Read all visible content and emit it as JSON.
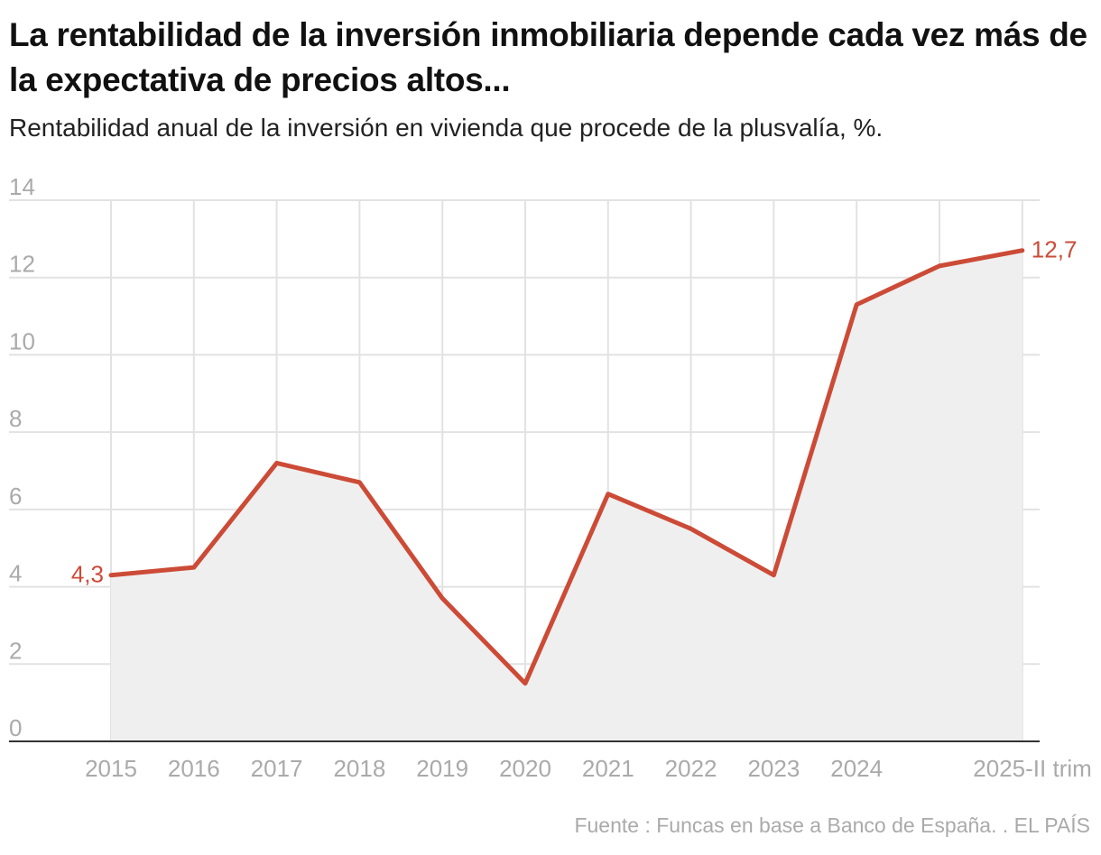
{
  "title": "La rentabilidad de la inversión inmobiliaria depende cada vez más de la expectativa de precios altos...",
  "subtitle": "Rentabilidad anual de la inversión en vivienda que procede de la plusvalía, %.",
  "footer": "Fuente : Funcas en base a Banco de España. . EL PAÍS",
  "chart_data": {
    "type": "area",
    "title": "La rentabilidad de la inversión inmobiliaria depende cada vez más de la expectativa de precios altos...",
    "subtitle": "Rentabilidad anual de la inversión en vivienda que procede de la plusvalía, %.",
    "categories": [
      "2015",
      "2016",
      "2017",
      "2018",
      "2019",
      "2020",
      "2021",
      "2022",
      "2023",
      "2024",
      "",
      "2025-II trim"
    ],
    "values": [
      4.3,
      4.5,
      7.2,
      6.7,
      3.7,
      1.5,
      6.4,
      5.5,
      4.3,
      11.3,
      12.3,
      12.7
    ],
    "ylim": [
      0,
      14
    ],
    "yticks": [
      "0",
      "2",
      "4",
      "6",
      "8",
      "10",
      "12",
      "14"
    ],
    "data_labels": {
      "first": "4,3",
      "last": "12,7"
    },
    "grid": true,
    "colors": {
      "line": "#cc4b37",
      "area": "#efefef",
      "grid": "#e2e2e2",
      "axis": "#333333",
      "label": "#cc4b37"
    }
  }
}
